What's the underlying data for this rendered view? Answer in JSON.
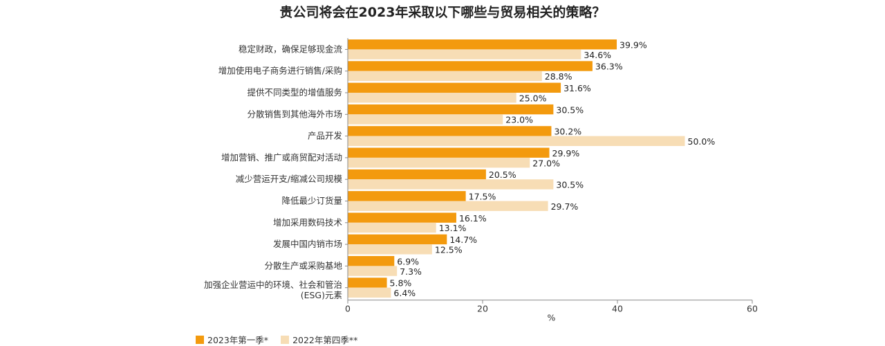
{
  "colors": {
    "series_2023q1": "#F39A0E",
    "series_2022q4": "#F7DDB5",
    "axis": "#888888"
  },
  "chart_data": {
    "type": "bar",
    "orientation": "horizontal",
    "title": "贵公司将会在2023年采取以下哪些与贸易相关的策略？",
    "xlabel": "%",
    "ylabel": "",
    "xlim": [
      0,
      60
    ],
    "x_ticks": [
      "0",
      "20",
      "40",
      "60"
    ],
    "grid": false,
    "legend_position": "bottom-left",
    "categories": [
      [
        "稳定财政，确保足够现金流"
      ],
      [
        "增加使用电子商务进行销售/采购"
      ],
      [
        "提供不同类型的增值服务"
      ],
      [
        "分散销售到其他海外市场"
      ],
      [
        "产品开发"
      ],
      [
        "增加营销、推广或商贸配对活动"
      ],
      [
        "减少营运开支/缩减公司规模"
      ],
      [
        "降低最少订货量"
      ],
      [
        "增加采用数码技术"
      ],
      [
        "发展中国内销市场"
      ],
      [
        "分散生产或采购基地"
      ],
      [
        "加强企业营运中的环境、社会和管治",
        "(ESG)元素"
      ]
    ],
    "series": [
      {
        "name": "2023年第一季*",
        "color": "#F39A0E",
        "values": [
          39.9,
          36.3,
          31.6,
          30.5,
          30.2,
          29.9,
          20.5,
          17.5,
          16.1,
          14.7,
          6.9,
          5.8
        ],
        "labels": [
          "39.9%",
          "36.3%",
          "31.6%",
          "30.5%",
          "30.2%",
          "29.9%",
          "20.5%",
          "17.5%",
          "16.1%",
          "14.7%",
          "6.9%",
          "5.8%"
        ]
      },
      {
        "name": "2022年第四季**",
        "color": "#F7DDB5",
        "values": [
          34.6,
          28.8,
          25.0,
          23.0,
          50.0,
          27.0,
          30.5,
          29.7,
          13.1,
          12.5,
          7.3,
          6.4
        ],
        "labels": [
          "34.6%",
          "28.8%",
          "25.0%",
          "23.0%",
          "50.0%",
          "27.0%",
          "30.5%",
          "29.7%",
          "13.1%",
          "12.5%",
          "7.3%",
          "6.4%"
        ]
      }
    ]
  }
}
